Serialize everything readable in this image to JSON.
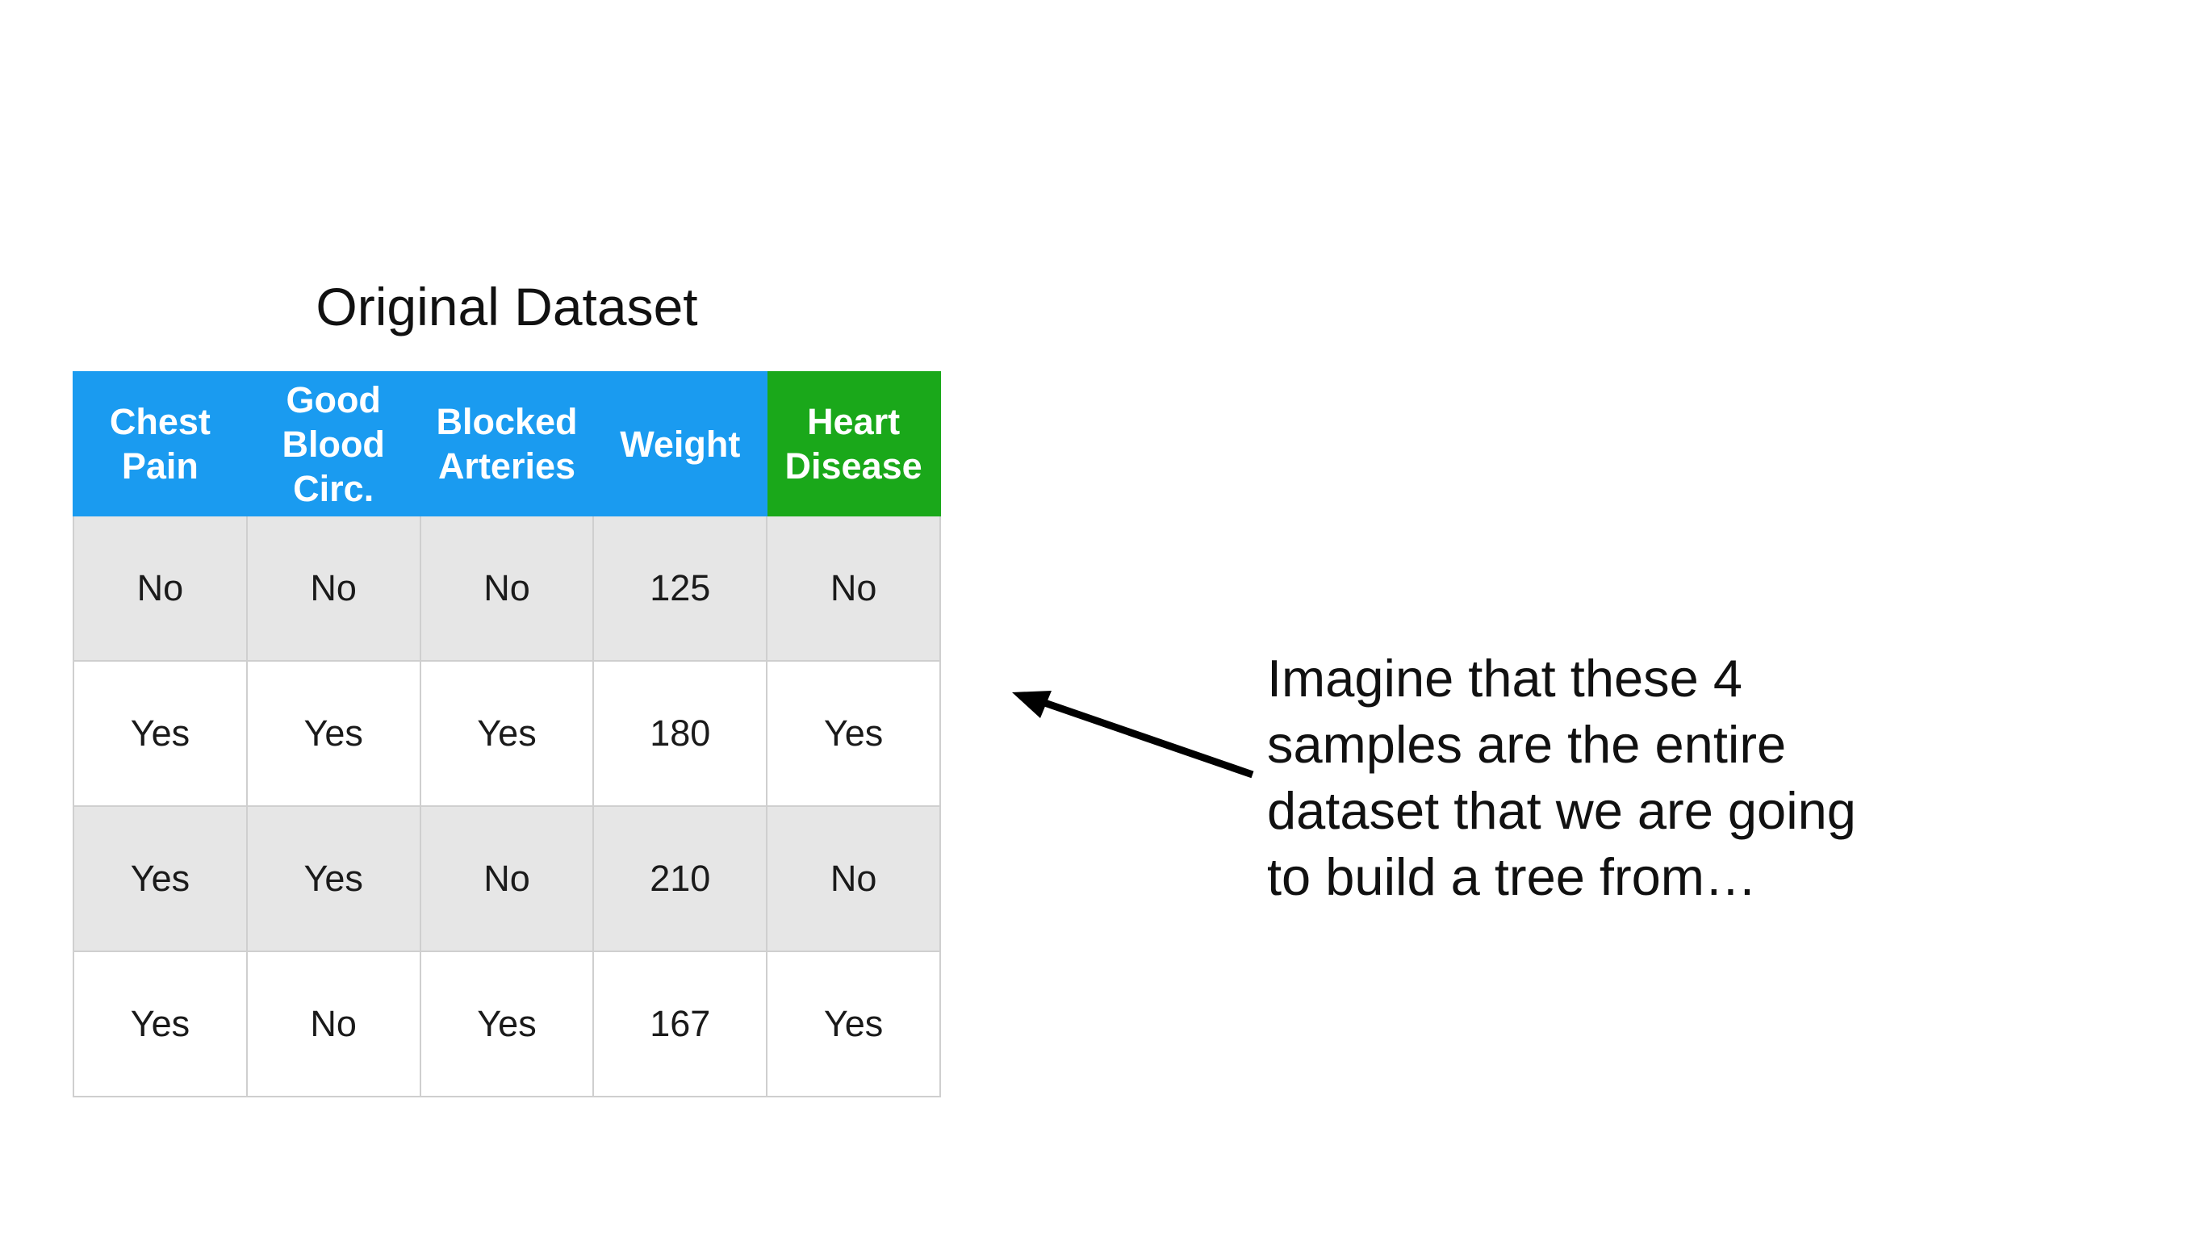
{
  "title": "Original Dataset",
  "columns": [
    {
      "label": "Chest\nPain",
      "target": false
    },
    {
      "label": "Good\nBlood\nCirc.",
      "target": false
    },
    {
      "label": "Blocked\nArteries",
      "target": false
    },
    {
      "label": "Weight",
      "target": false
    },
    {
      "label": "Heart\nDisease",
      "target": true
    }
  ],
  "rows": [
    [
      "No",
      "No",
      "No",
      "125",
      "No"
    ],
    [
      "Yes",
      "Yes",
      "Yes",
      "180",
      "Yes"
    ],
    [
      "Yes",
      "Yes",
      "No",
      "210",
      "No"
    ],
    [
      "Yes",
      "No",
      "Yes",
      "167",
      "Yes"
    ]
  ],
  "caption_lines": [
    "Imagine that these 4",
    "samples are the entire",
    "dataset that we are going",
    "to build a tree from…"
  ],
  "colors": {
    "feature_header": "#1a9bf0",
    "target_header": "#1aa81a",
    "shaded_row": "#e6e6e6",
    "arrow": "#000000"
  },
  "icons": [
    "arrow-left-icon"
  ]
}
